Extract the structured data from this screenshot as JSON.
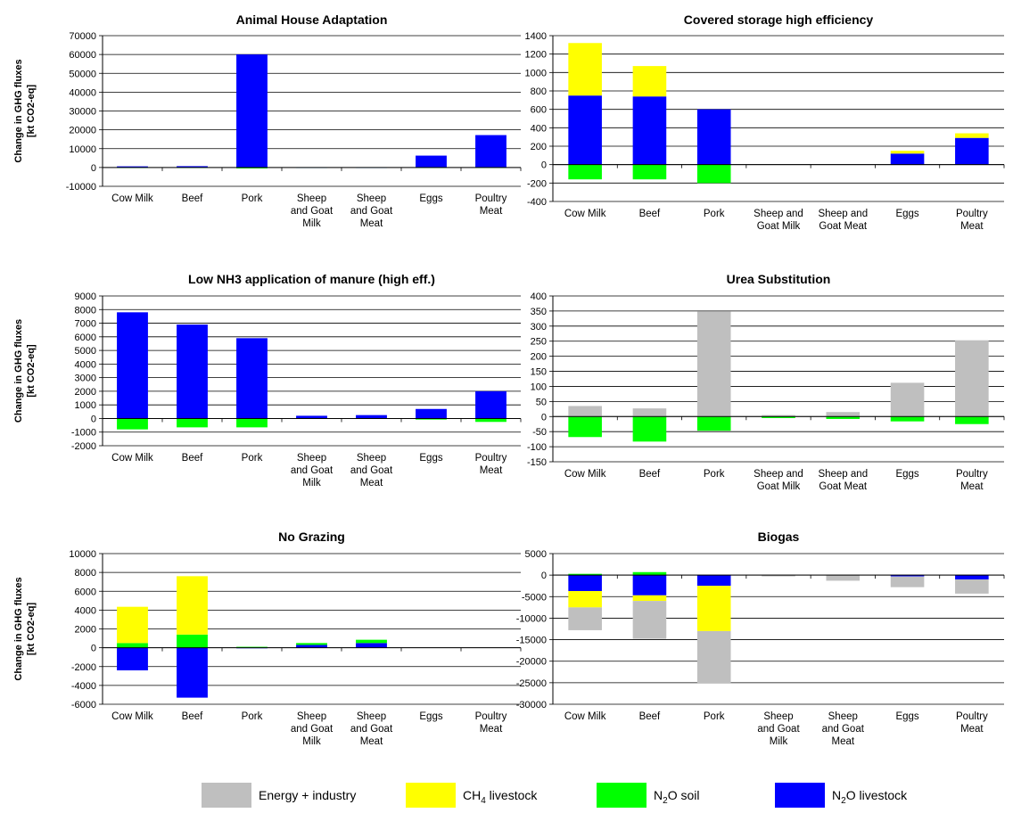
{
  "colors": {
    "energy": "#bfbfbf",
    "ch4": "#ffff00",
    "n2o_soil": "#00ff00",
    "n2o_livestock": "#0000ff"
  },
  "ylabel_line1": "Change in GHG fluxes",
  "ylabel_line2": "[kt CO2-eq]",
  "legend": [
    {
      "key": "energy",
      "label": "Energy + industry"
    },
    {
      "key": "ch4",
      "label_main": "CH",
      "label_sub": "4",
      "label_rest": " livestock"
    },
    {
      "key": "n2o_soil",
      "label_main": "N",
      "label_sub": "2",
      "label_rest": "O soil"
    },
    {
      "key": "n2o_livestock",
      "label_main": "N",
      "label_sub": "2",
      "label_rest": "O livestock"
    }
  ],
  "chart_data": [
    {
      "type": "bar",
      "stacked": true,
      "title": "Animal House Adaptation",
      "ylabel": "Change in GHG fluxes [kt CO2-eq]",
      "ylim": [
        -10000,
        70000
      ],
      "ytick_step": 10000,
      "categories": [
        [
          "Cow Milk"
        ],
        [
          "Beef"
        ],
        [
          "Pork"
        ],
        [
          "Sheep",
          "and Goat",
          "Milk"
        ],
        [
          "Sheep",
          "and Goat",
          "Meat"
        ],
        [
          "Eggs"
        ],
        [
          "Poultry",
          "Meat"
        ]
      ],
      "series": [
        {
          "key": "n2o_soil",
          "values": [
            -100,
            -100,
            -500,
            -50,
            -50,
            -100,
            -150
          ]
        },
        {
          "key": "n2o_livestock",
          "values": [
            600,
            700,
            60000,
            50,
            40,
            6300,
            17200
          ]
        }
      ]
    },
    {
      "type": "bar",
      "stacked": true,
      "title": "Covered storage high efficiency",
      "ylim": [
        -400,
        1400
      ],
      "ytick_step": 200,
      "categories": [
        [
          "Cow Milk"
        ],
        [
          "Beef"
        ],
        [
          "Pork"
        ],
        [
          "Sheep and",
          "Goat Milk"
        ],
        [
          "Sheep and",
          "Goat Meat"
        ],
        [
          "Eggs"
        ],
        [
          "Poultry",
          "Meat"
        ]
      ],
      "series": [
        {
          "key": "n2o_soil",
          "values": [
            -160,
            -160,
            -200,
            0,
            0,
            0,
            0
          ]
        },
        {
          "key": "n2o_livestock",
          "values": [
            750,
            740,
            600,
            0,
            0,
            120,
            290
          ]
        },
        {
          "key": "ch4",
          "values": [
            570,
            330,
            0,
            0,
            0,
            30,
            50
          ]
        }
      ]
    },
    {
      "type": "bar",
      "stacked": true,
      "title": "Low NH3 application of manure (high eff.)",
      "ylabel": "Change in GHG fluxes [kt CO2-eq]",
      "ylim": [
        -2000,
        9000
      ],
      "ytick_step": 1000,
      "categories": [
        [
          "Cow Milk"
        ],
        [
          "Beef"
        ],
        [
          "Pork"
        ],
        [
          "Sheep",
          "and Goat",
          "Milk"
        ],
        [
          "Sheep",
          "and Goat",
          "Meat"
        ],
        [
          "Eggs"
        ],
        [
          "Poultry",
          "Meat"
        ]
      ],
      "series": [
        {
          "key": "n2o_soil",
          "values": [
            -800,
            -650,
            -650,
            -30,
            -30,
            -80,
            -250
          ]
        },
        {
          "key": "n2o_livestock",
          "values": [
            7800,
            6900,
            5900,
            200,
            250,
            700,
            2000
          ]
        }
      ]
    },
    {
      "type": "bar",
      "stacked": true,
      "title": "Urea Substitution",
      "ylim": [
        -150,
        400
      ],
      "ytick_step": 50,
      "categories": [
        [
          "Cow Milk"
        ],
        [
          "Beef"
        ],
        [
          "Pork"
        ],
        [
          "Sheep and",
          "Goat Milk"
        ],
        [
          "Sheep and",
          "Goat Meat"
        ],
        [
          "Eggs"
        ],
        [
          "Poultry",
          "Meat"
        ]
      ],
      "series": [
        {
          "key": "n2o_soil",
          "values": [
            -68,
            -83,
            -47,
            -5,
            -8,
            -16,
            -25
          ]
        },
        {
          "key": "energy",
          "values": [
            35,
            27,
            348,
            5,
            15,
            112,
            253
          ]
        }
      ]
    },
    {
      "type": "bar",
      "stacked": true,
      "title": "No Grazing",
      "ylabel": "Change in GHG fluxes [kt CO2-eq]",
      "ylim": [
        -6000,
        10000
      ],
      "ytick_step": 2000,
      "categories": [
        [
          "Cow Milk"
        ],
        [
          "Beef"
        ],
        [
          "Pork"
        ],
        [
          "Sheep",
          "and Goat",
          "Milk"
        ],
        [
          "Sheep",
          "and Goat",
          "Meat"
        ],
        [
          "Eggs"
        ],
        [
          "Poultry",
          "Meat"
        ]
      ],
      "series": [
        {
          "key": "n2o_livestock",
          "values": [
            -2400,
            -5300,
            -60,
            300,
            500,
            0,
            0
          ]
        },
        {
          "key": "n2o_soil",
          "values": [
            500,
            1400,
            100,
            200,
            350,
            0,
            0
          ]
        },
        {
          "key": "ch4",
          "values": [
            3850,
            6200,
            0,
            0,
            0,
            0,
            0
          ]
        }
      ]
    },
    {
      "type": "bar",
      "stacked": true,
      "title": "Biogas",
      "ylim": [
        -30000,
        5000
      ],
      "ytick_step": 5000,
      "categories": [
        [
          "Cow Milk"
        ],
        [
          "Beef"
        ],
        [
          "Pork"
        ],
        [
          "Sheep",
          "and Goat",
          "Milk"
        ],
        [
          "Sheep",
          "and Goat",
          "Meat"
        ],
        [
          "Eggs"
        ],
        [
          "Poultry",
          "Meat"
        ]
      ],
      "series": [
        {
          "key": "n2o_soil",
          "values": [
            300,
            700,
            0,
            0,
            0,
            0,
            0
          ]
        },
        {
          "key": "n2o_livestock",
          "values": [
            -3700,
            -4700,
            -2500,
            0,
            0,
            -300,
            -1000
          ]
        },
        {
          "key": "ch4",
          "values": [
            -3800,
            -1300,
            -10500,
            0,
            0,
            0,
            0
          ]
        },
        {
          "key": "energy",
          "values": [
            -5300,
            -8800,
            -12200,
            -300,
            -1300,
            -2500,
            -3300
          ]
        }
      ]
    }
  ]
}
